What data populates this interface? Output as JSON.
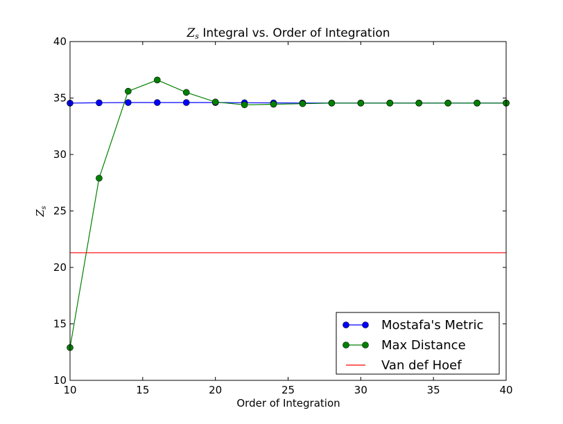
{
  "chart_data": {
    "type": "line",
    "title": "Z_s Integral vs. Order of Integration",
    "title_math": "Z",
    "title_math_sub": "s",
    "title_rest": " Integral vs. Order of Integration",
    "xlabel": "Order of Integration",
    "ylabel": "Z_s",
    "ylabel_math": "Z",
    "ylabel_math_sub": "s",
    "xlim": [
      10,
      40
    ],
    "ylim": [
      10,
      40
    ],
    "xticks": [
      10,
      15,
      20,
      25,
      30,
      35,
      40
    ],
    "yticks": [
      10,
      15,
      20,
      25,
      30,
      35,
      40
    ],
    "grid": false,
    "legend_position": "lower-right",
    "x": [
      10,
      12,
      14,
      16,
      18,
      20,
      22,
      24,
      26,
      28,
      30,
      32,
      34,
      36,
      38,
      40
    ],
    "series": [
      {
        "name": "Mostafa's Metric",
        "color": "#0000ff",
        "marker": "circle",
        "values": [
          34.55,
          34.58,
          34.6,
          34.6,
          34.6,
          34.6,
          34.58,
          34.57,
          34.56,
          34.56,
          34.56,
          34.56,
          34.56,
          34.56,
          34.56,
          34.56
        ]
      },
      {
        "name": "Max Distance",
        "color": "#008000",
        "marker": "circle",
        "values": [
          12.9,
          27.9,
          35.6,
          36.6,
          35.5,
          34.65,
          34.4,
          34.45,
          34.5,
          34.55,
          34.55,
          34.55,
          34.55,
          34.55,
          34.55,
          34.55
        ]
      },
      {
        "name": "Van def Hoef",
        "color": "#ff0000",
        "marker": "none",
        "constant": 21.3
      }
    ]
  }
}
